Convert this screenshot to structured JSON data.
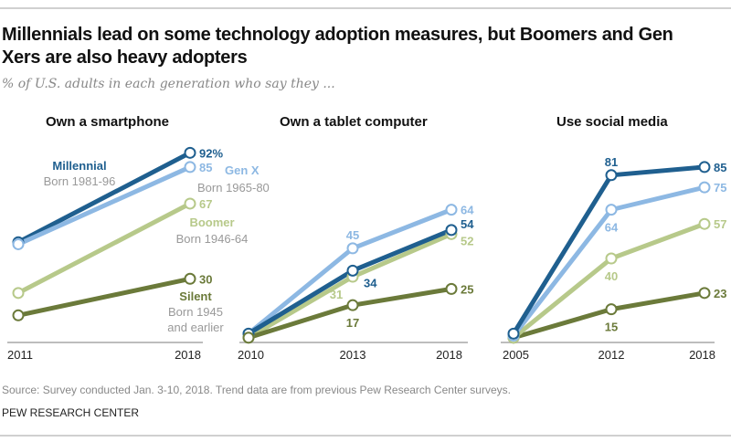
{
  "title": "Millennials lead on some technology adoption measures, but Boomers and Gen Xers are also heavy adopters",
  "subtitle": "% of U.S. adults in each generation who say they ...",
  "source": "Source: Survey conducted Jan. 3-10, 2018. Trend data are from previous Pew Research Center surveys.",
  "organization": "PEW RESEARCH CENTER",
  "colors": {
    "Millennial": "#1f5f8f",
    "Gen X": "#8db8e3",
    "Boomer": "#b7c98a",
    "Silent": "#6b7a3a"
  },
  "generations": {
    "Millennial": {
      "name": "Millennial",
      "born": "Born 1981-96"
    },
    "Gen X": {
      "name": "Gen X",
      "born": "Born 1965-80"
    },
    "Boomer": {
      "name": "Boomer",
      "born": "Born 1946-64"
    },
    "Silent": {
      "name": "Silent",
      "born_line1": "Born 1945",
      "born_line2": "and earlier"
    }
  },
  "chart_data": [
    {
      "type": "line",
      "title": "Own a smartphone",
      "x": [
        "2011",
        "2018"
      ],
      "ylim": [
        0,
        100
      ],
      "grid": false,
      "series": [
        {
          "name": "Millennial",
          "values": [
            48,
            92
          ],
          "labels": [
            "",
            "92%"
          ]
        },
        {
          "name": "Gen X",
          "values": [
            47,
            85
          ],
          "labels": [
            "",
            "85"
          ]
        },
        {
          "name": "Boomer",
          "values": [
            23,
            67
          ],
          "labels": [
            "",
            "67"
          ]
        },
        {
          "name": "Silent",
          "values": [
            12,
            30
          ],
          "labels": [
            "",
            "30"
          ]
        }
      ]
    },
    {
      "type": "line",
      "title": "Own a tablet computer",
      "x": [
        "2010",
        "2013",
        "2018"
      ],
      "ylim": [
        0,
        100
      ],
      "grid": false,
      "series": [
        {
          "name": "Gen X",
          "values": [
            3,
            45,
            64
          ],
          "labels": [
            "",
            "45",
            "64"
          ]
        },
        {
          "name": "Boomer",
          "values": [
            1,
            31,
            52
          ],
          "labels": [
            "",
            "31",
            "52"
          ]
        },
        {
          "name": "Millennial",
          "values": [
            3,
            34,
            54
          ],
          "labels": [
            "",
            "34",
            "54"
          ]
        },
        {
          "name": "Silent",
          "values": [
            1,
            17,
            25
          ],
          "labels": [
            "",
            "17",
            "25"
          ]
        }
      ]
    },
    {
      "type": "line",
      "title": "Use social media",
      "x": [
        "2005",
        "2012",
        "2018"
      ],
      "ylim": [
        0,
        100
      ],
      "grid": false,
      "series": [
        {
          "name": "Silent",
          "values": [
            1,
            15,
            23
          ],
          "labels": [
            "",
            "15",
            "23"
          ]
        },
        {
          "name": "Boomer",
          "values": [
            1,
            40,
            57
          ],
          "labels": [
            "",
            "40",
            "57"
          ]
        },
        {
          "name": "Gen X",
          "values": [
            2,
            64,
            75
          ],
          "labels": [
            "",
            "64",
            "75"
          ]
        },
        {
          "name": "Millennial",
          "values": [
            3,
            81,
            85
          ],
          "labels": [
            "",
            "81",
            "85"
          ]
        }
      ]
    }
  ]
}
